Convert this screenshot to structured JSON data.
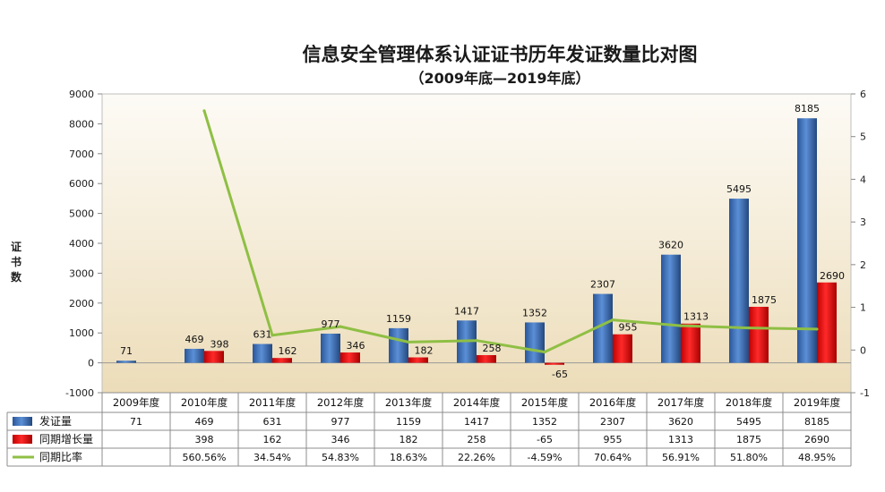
{
  "chart_data": {
    "type": "bar",
    "title": "信息安全管理体系认证证书历年发证数量比对图",
    "subtitle": "（2009年底—2019年底）",
    "ylabel": "证书数",
    "ylim": [
      -1000,
      9000
    ],
    "yticks": [
      "9000",
      "8000",
      "7000",
      "6000",
      "5000",
      "4000",
      "3000",
      "2000",
      "1000",
      "0",
      "-1000"
    ],
    "y2lim": [
      -1,
      6
    ],
    "y2ticks": [
      "6",
      "5",
      "4",
      "3",
      "2",
      "1",
      "0",
      "-1"
    ],
    "categories": [
      "2009年度",
      "2010年度",
      "2011年度",
      "2012年度",
      "2013年度",
      "2014年度",
      "2015年度",
      "2016年度",
      "2017年度",
      "2018年度",
      "2019年度"
    ],
    "grid": false,
    "legend": "bottom-table",
    "series": [
      {
        "name": "发证量",
        "type": "bar",
        "color": "#3d6fbe",
        "values": [
          71,
          469,
          631,
          977,
          1159,
          1417,
          1352,
          2307,
          3620,
          5495,
          8185
        ],
        "labels": [
          "71",
          "469",
          "631",
          "977",
          "1159",
          "1417",
          "1352",
          "2307",
          "3620",
          "5495",
          "8185"
        ]
      },
      {
        "name": "同期增长量",
        "type": "bar",
        "color": "#e01010",
        "values": [
          null,
          398,
          162,
          346,
          182,
          258,
          -65,
          955,
          1313,
          1875,
          2690
        ],
        "labels": [
          "",
          "398",
          "162",
          "346",
          "182",
          "258",
          "-65",
          "955",
          "1313",
          "1875",
          "2690"
        ]
      },
      {
        "name": "同期比率",
        "type": "line",
        "axis": "secondary",
        "color": "#8fbf44",
        "values": [
          null,
          5.6056,
          0.3454,
          0.5483,
          0.1863,
          0.2226,
          -0.0459,
          0.7064,
          0.5691,
          0.518,
          0.4895
        ],
        "labels": [
          "",
          "560.56%",
          "34.54%",
          "54.83%",
          "18.63%",
          "22.26%",
          "-4.59%",
          "70.64%",
          "56.91%",
          "51.80%",
          "48.95%"
        ]
      }
    ]
  }
}
